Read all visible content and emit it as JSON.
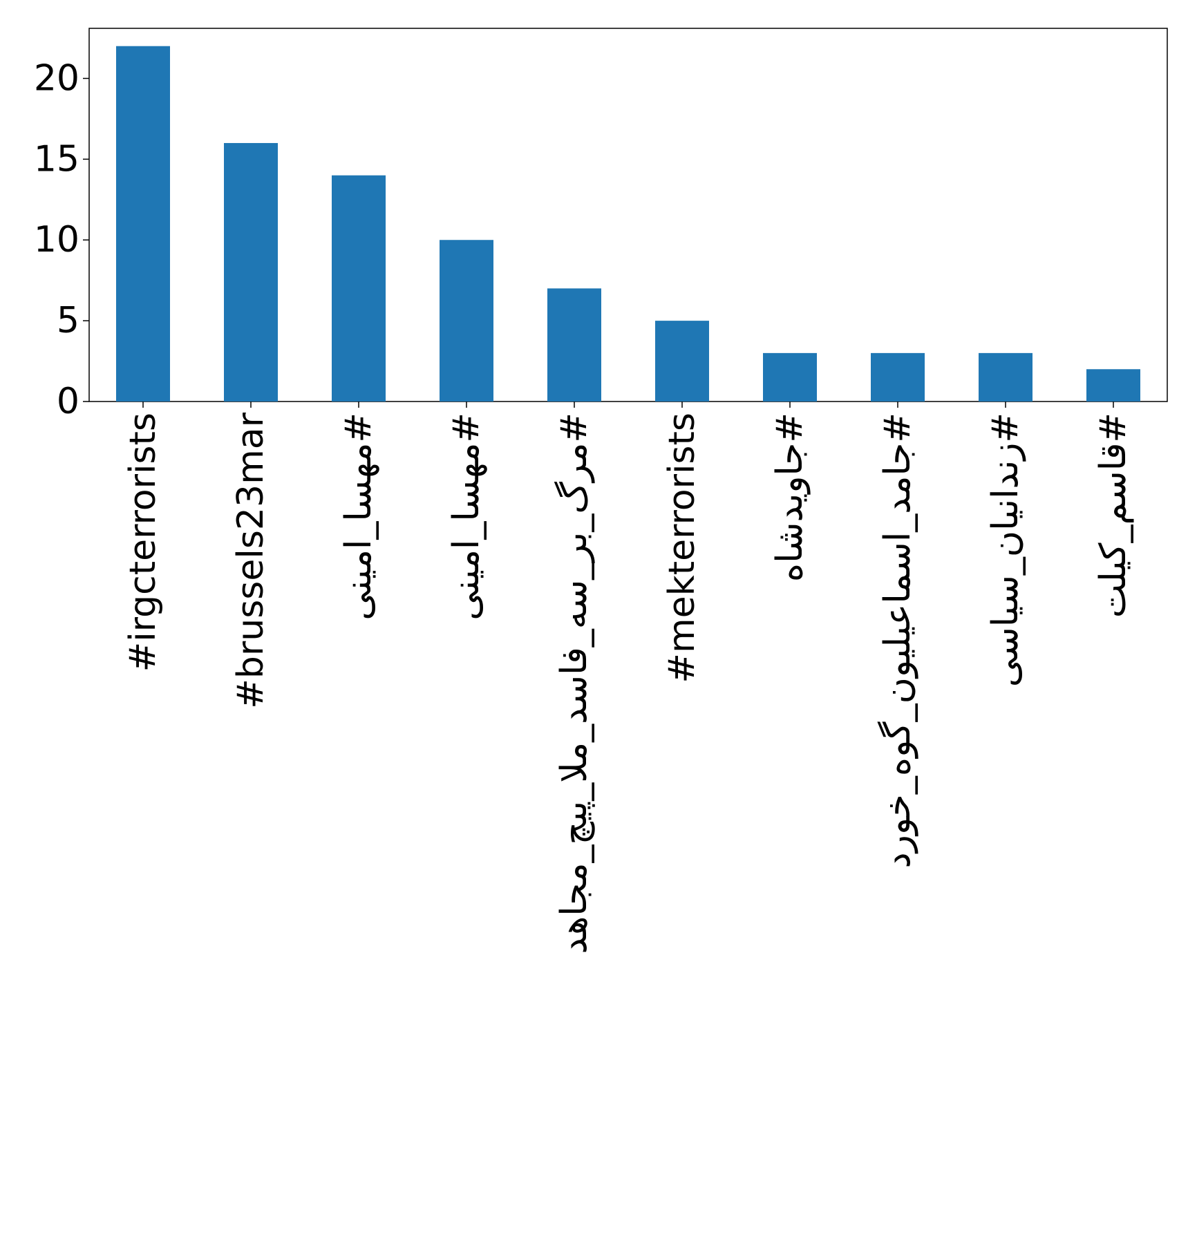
{
  "chart_data": {
    "type": "bar",
    "title": "",
    "xlabel": "",
    "ylabel": "",
    "categories": [
      "#irgcterrorists",
      "#brussels23mar",
      "#مهسا_امینی",
      "#مهسا_امینی",
      "#مرگ_بر_سه_فاسد_ملا_پیچ_مجاهد",
      "#mekterrorists",
      "#جاویدشاه",
      "#جامد_اسماعیلیون_گوه_خورد",
      "#زندانیان_سیاسی",
      "#قاسم_کیلت"
    ],
    "values": [
      22,
      16,
      14,
      10,
      7,
      5,
      3,
      3,
      3,
      2
    ],
    "ylim": [
      0,
      23.1
    ],
    "yticks": [
      0,
      5,
      10,
      15,
      20
    ],
    "grid": false,
    "legend": "none",
    "bar_color": "#1f77b4"
  }
}
